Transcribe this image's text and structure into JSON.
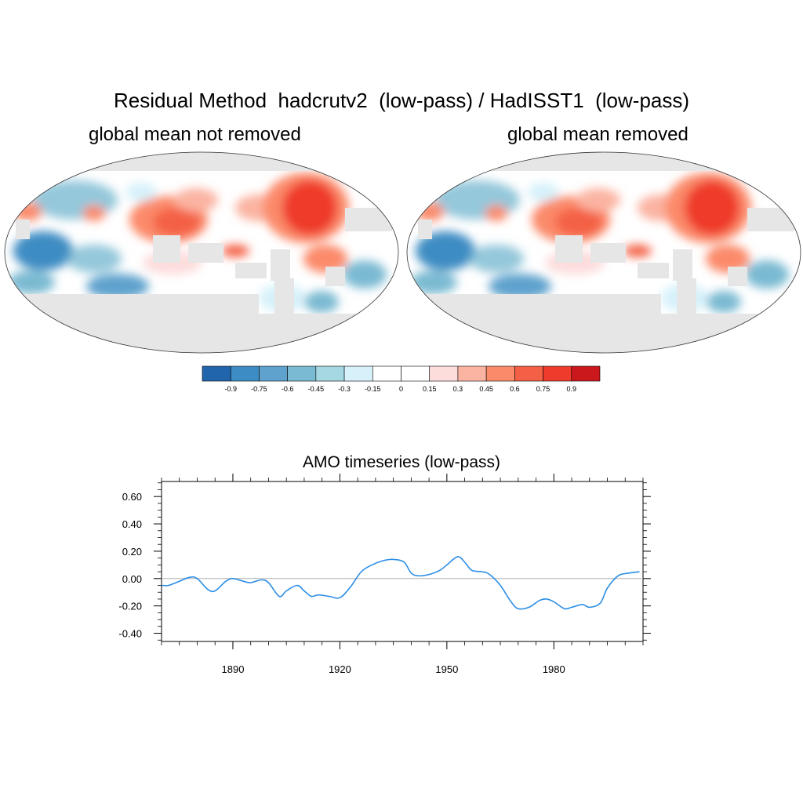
{
  "figure": {
    "title": "Residual Method  hadcrutv2  (low-pass) / HadISST1  (low-pass)",
    "panels": [
      {
        "subtitle": "global mean not removed"
      },
      {
        "subtitle": "global mean removed"
      }
    ]
  },
  "colorbar": {
    "labels": [
      "-0.9",
      "-0.75",
      "-0.6",
      "-0.45",
      "-0.3",
      "-0.15",
      "0",
      "0.15",
      "0.3",
      "0.45",
      "0.6",
      "0.75",
      "0.9"
    ],
    "colors": [
      "#2166ac",
      "#3d8cc3",
      "#5fa2cd",
      "#7abad2",
      "#a5d8e2",
      "#d6f1fa",
      "#ffffff",
      "#ffffff",
      "#fddcdc",
      "#fbb4a2",
      "#fb8a6b",
      "#f46045",
      "#ef3b2c",
      "#cb181d"
    ]
  },
  "colors": {
    "land": "#e6e6e6",
    "coast": "#8c8c8c",
    "line": "#2c8ee6",
    "zero": "#b4b4b4"
  },
  "chart_data": {
    "type": "line",
    "title": "AMO timeseries (low-pass)",
    "xlabel": "",
    "ylabel": "",
    "xlim": [
      1870,
      2005
    ],
    "ylim": [
      -0.46,
      0.71
    ],
    "xticks": [
      1890,
      1920,
      1950,
      1980
    ],
    "yticks": [
      -0.4,
      -0.2,
      0.0,
      0.2,
      0.4,
      0.6
    ],
    "ytick_labels": [
      "-0.40",
      "-0.20",
      "0.00",
      "0.20",
      "0.40",
      "0.60"
    ],
    "zero_line": 0,
    "series": [
      {
        "name": "AMO",
        "x": [
          1870,
          1872,
          1875,
          1878,
          1880,
          1883,
          1885,
          1888,
          1890,
          1893,
          1895,
          1898,
          1900,
          1903,
          1905,
          1908,
          1910,
          1912,
          1914,
          1917,
          1920,
          1923,
          1926,
          1929,
          1932,
          1935,
          1938,
          1940,
          1942,
          1945,
          1948,
          1950,
          1953,
          1955,
          1957,
          1960,
          1962,
          1965,
          1968,
          1970,
          1973,
          1976,
          1978,
          1980,
          1983,
          1985,
          1988,
          1990,
          1993,
          1995,
          1998,
          2001,
          2004
        ],
        "y": [
          -0.05,
          -0.05,
          -0.02,
          0.01,
          0.0,
          -0.08,
          -0.09,
          -0.02,
          0.0,
          -0.02,
          -0.03,
          -0.01,
          -0.03,
          -0.13,
          -0.09,
          -0.05,
          -0.09,
          -0.13,
          -0.12,
          -0.13,
          -0.14,
          -0.06,
          0.05,
          0.1,
          0.13,
          0.14,
          0.12,
          0.04,
          0.02,
          0.03,
          0.06,
          0.1,
          0.16,
          0.12,
          0.06,
          0.05,
          0.03,
          -0.05,
          -0.17,
          -0.22,
          -0.21,
          -0.16,
          -0.15,
          -0.17,
          -0.22,
          -0.21,
          -0.19,
          -0.21,
          -0.18,
          -0.07,
          0.02,
          0.04,
          0.05
        ]
      }
    ]
  }
}
